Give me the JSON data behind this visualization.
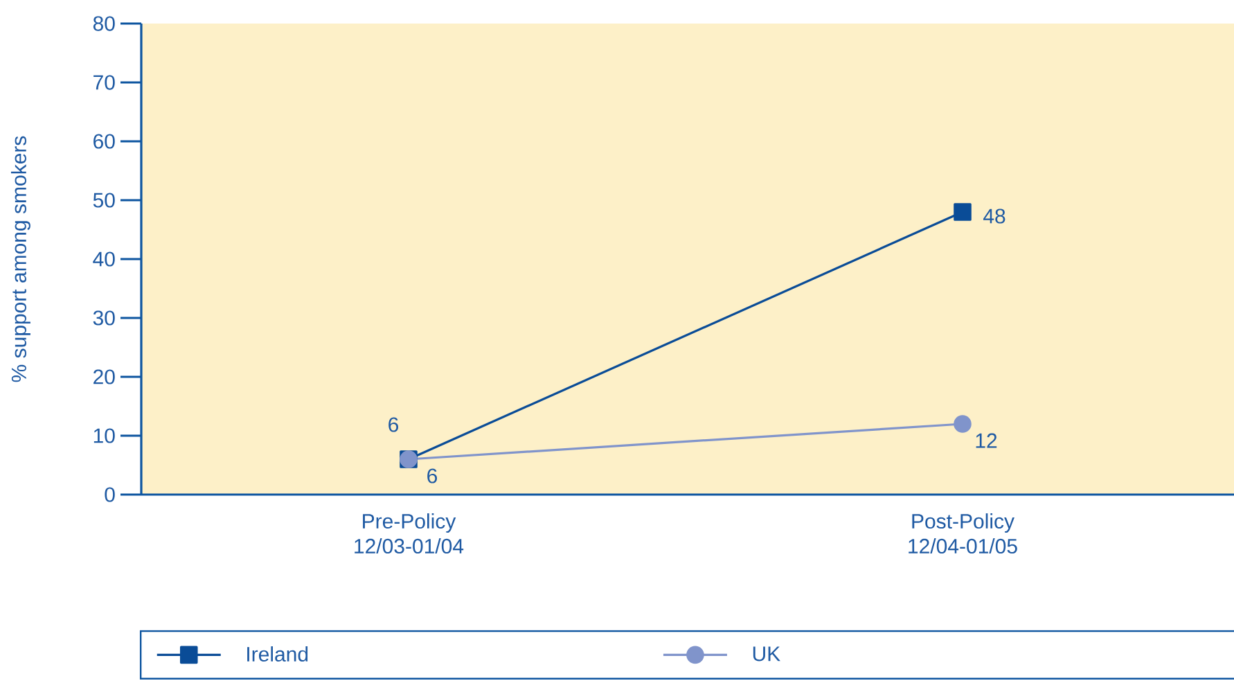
{
  "chart_data": {
    "type": "line",
    "ylabel": "% support among smokers",
    "categories": [
      "Pre-Policy 12/03-01/04",
      "Post-Policy 12/04-01/05"
    ],
    "series": [
      {
        "name": "Ireland",
        "color": "#0a4c97",
        "marker": "square",
        "values": [
          6,
          48
        ]
      },
      {
        "name": "UK",
        "color": "#8094cb",
        "marker": "circle",
        "values": [
          6,
          12
        ]
      }
    ],
    "ylim": [
      0,
      80
    ],
    "yticks": [
      0,
      10,
      20,
      30,
      40,
      50,
      60,
      70,
      80
    ],
    "data_labels": true,
    "legend": "bottom",
    "line_style": "solid"
  }
}
